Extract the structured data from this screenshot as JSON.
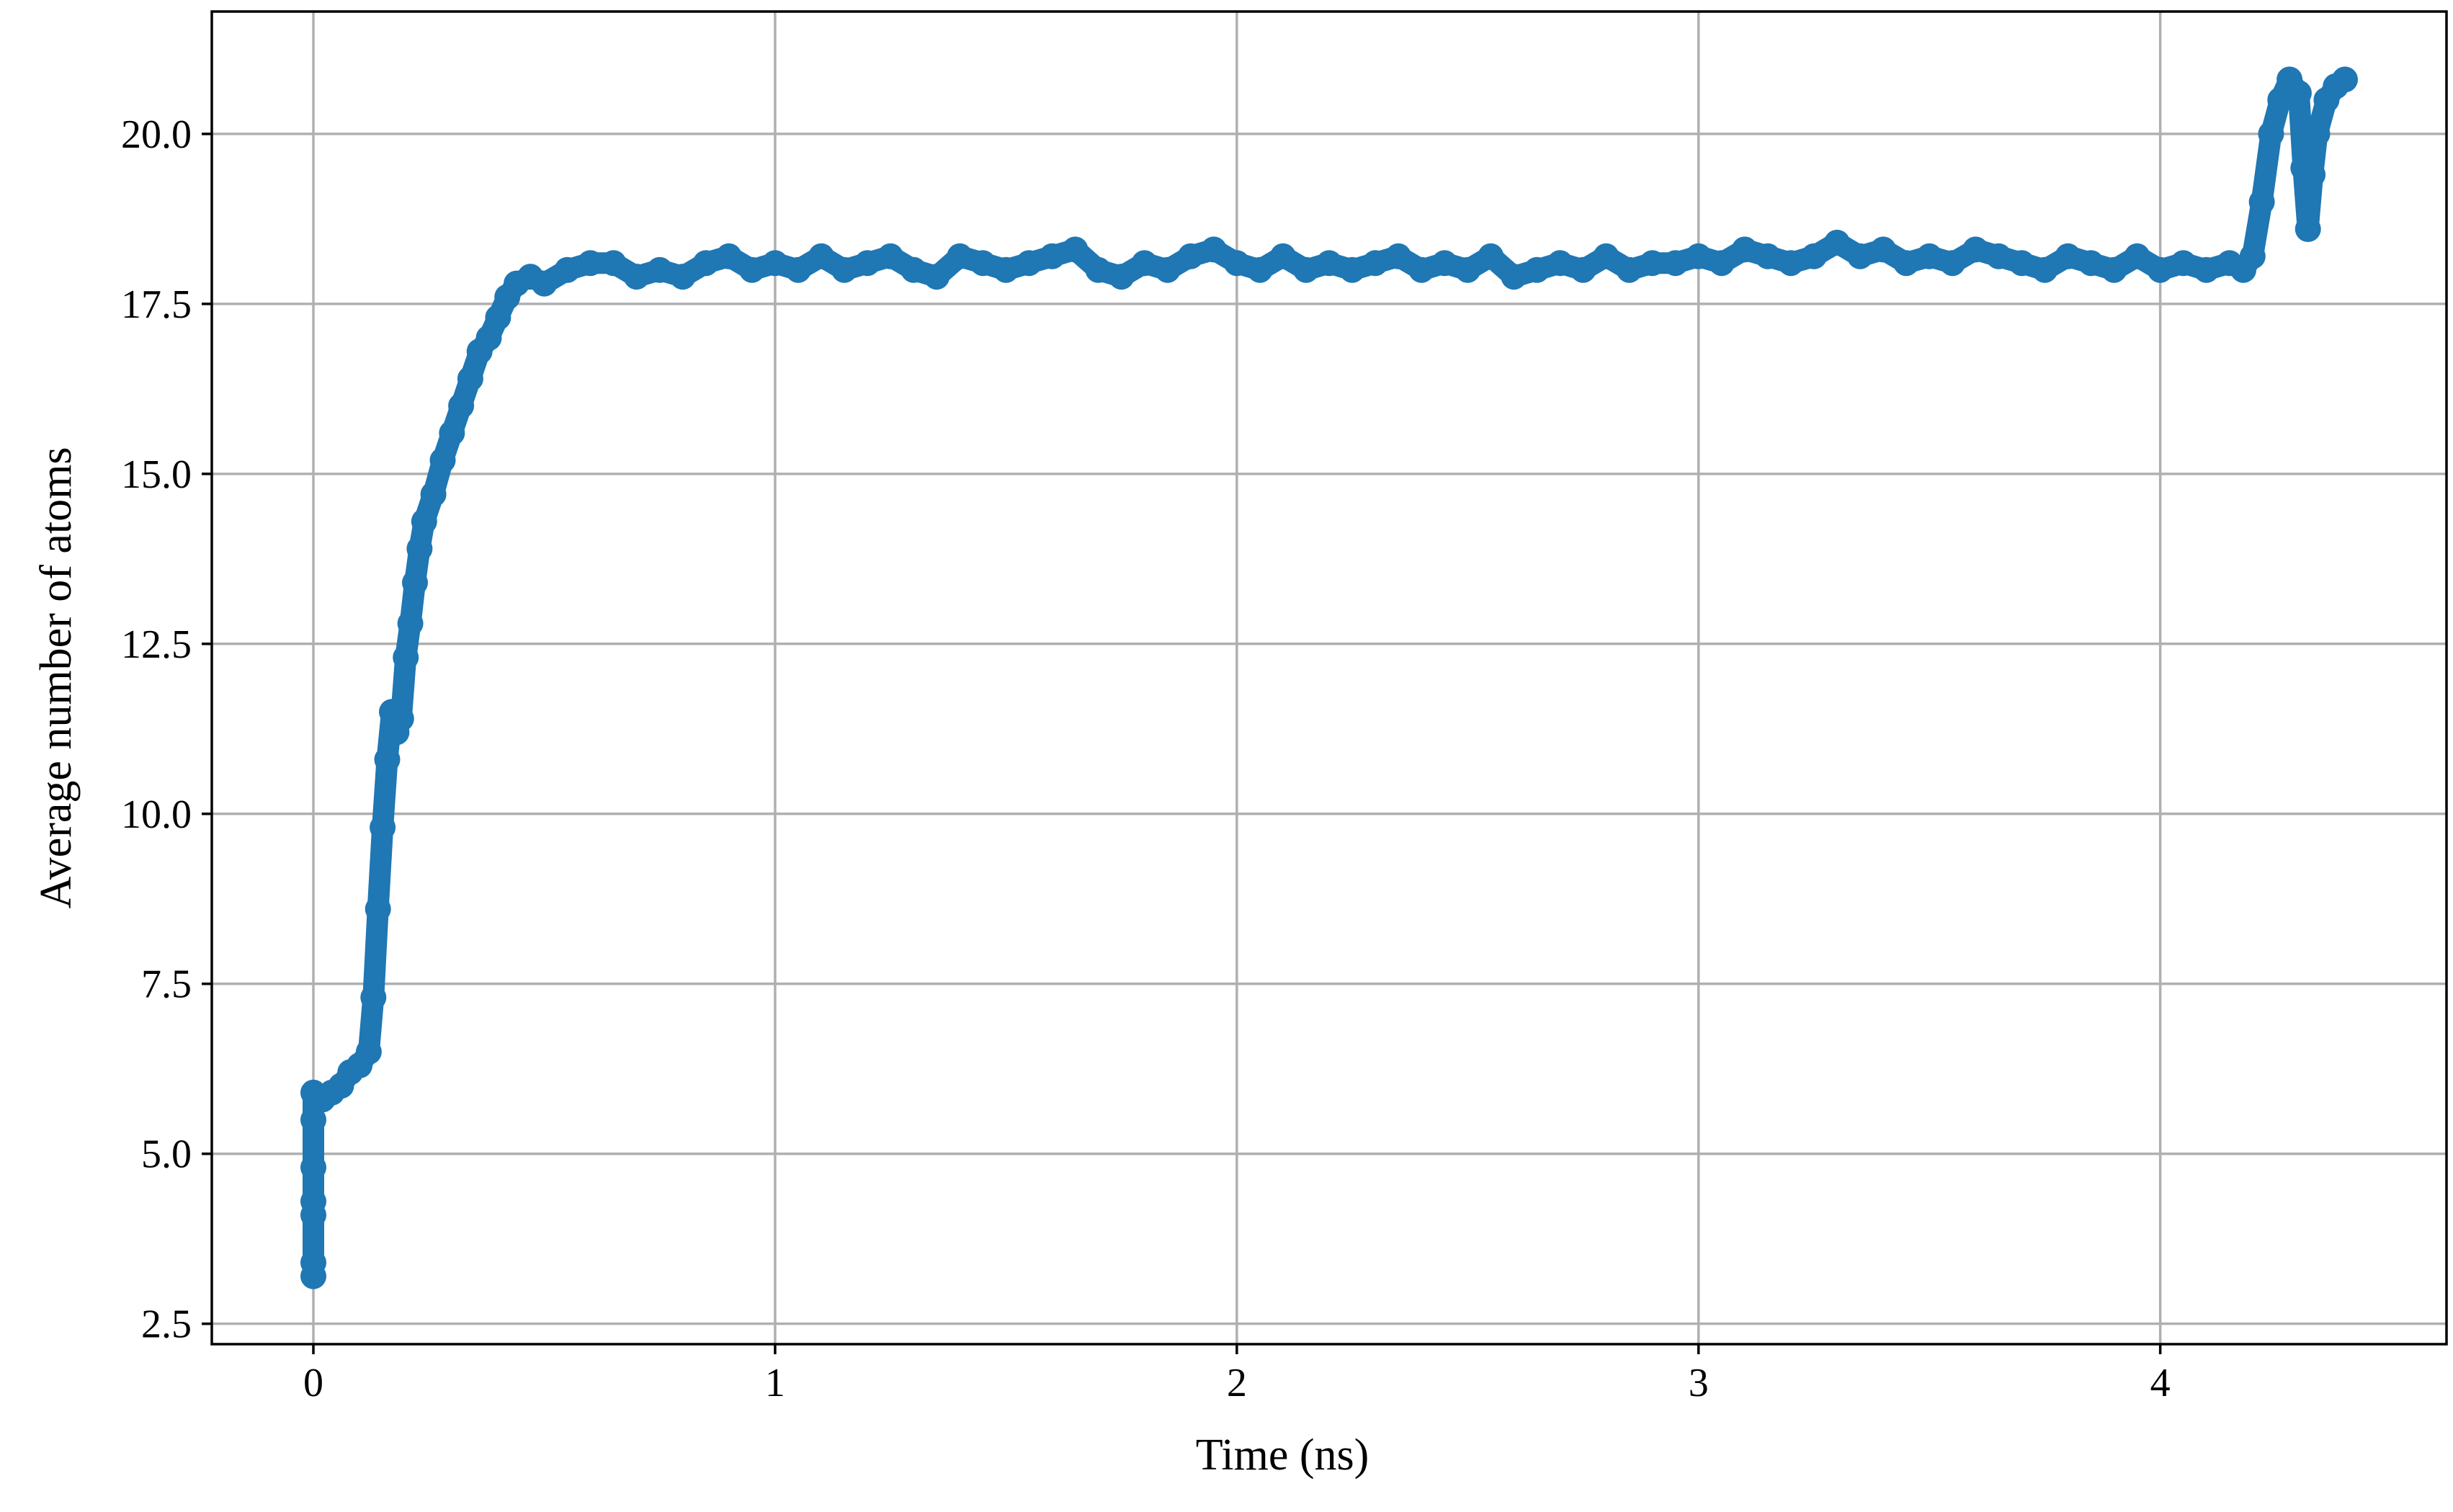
{
  "chart_data": {
    "type": "scatter",
    "title": "",
    "xlabel": "Time (ns)",
    "ylabel": "Average number of atoms",
    "xlim": [
      -0.22,
      4.62
    ],
    "ylim": [
      2.2,
      21.8
    ],
    "xticks": [
      0,
      1,
      2,
      3,
      4
    ],
    "xtick_labels": [
      "0",
      "1",
      "2",
      "3",
      "4"
    ],
    "yticks": [
      2.5,
      5.0,
      7.5,
      10.0,
      12.5,
      15.0,
      17.5,
      20.0
    ],
    "ytick_labels": [
      "2.5",
      "5.0",
      "7.5",
      "10.0",
      "12.5",
      "15.0",
      "17.5",
      "20.0"
    ],
    "grid": true,
    "legend": "none",
    "series_color": "#1f77b4",
    "marker": "circle",
    "line": "connected",
    "series": [
      {
        "x": [
          0.0,
          0.0,
          0.0,
          0.0,
          0.0,
          0.0,
          0.0,
          0.02,
          0.04,
          0.06,
          0.08,
          0.1,
          0.12,
          0.13,
          0.14,
          0.15,
          0.16,
          0.17,
          0.18,
          0.19,
          0.2,
          0.21,
          0.22,
          0.23,
          0.24,
          0.26,
          0.28,
          0.3,
          0.32,
          0.34,
          0.36,
          0.38,
          0.4,
          0.42,
          0.44,
          0.47,
          0.5,
          0.55,
          0.6,
          0.65,
          0.7,
          0.75,
          0.8,
          0.85,
          0.9,
          0.95,
          1.0,
          1.05,
          1.1,
          1.15,
          1.2,
          1.25,
          1.3,
          1.35,
          1.4,
          1.45,
          1.5,
          1.55,
          1.6,
          1.65,
          1.7,
          1.75,
          1.8,
          1.85,
          1.9,
          1.95,
          2.0,
          2.05,
          2.1,
          2.15,
          2.2,
          2.25,
          2.3,
          2.35,
          2.4,
          2.45,
          2.5,
          2.55,
          2.6,
          2.65,
          2.7,
          2.75,
          2.8,
          2.85,
          2.9,
          2.95,
          3.0,
          3.05,
          3.1,
          3.15,
          3.2,
          3.25,
          3.3,
          3.35,
          3.4,
          3.45,
          3.5,
          3.55,
          3.6,
          3.65,
          3.7,
          3.75,
          3.8,
          3.85,
          3.9,
          3.95,
          4.0,
          4.05,
          4.1,
          4.15,
          4.18,
          4.2,
          4.22,
          4.24,
          4.26,
          4.28,
          4.3,
          4.31,
          4.32,
          4.33,
          4.34,
          4.36,
          4.38,
          4.4
        ],
        "y": [
          3.2,
          3.4,
          4.1,
          4.3,
          4.8,
          5.5,
          5.9,
          5.8,
          5.9,
          6.0,
          6.2,
          6.3,
          6.5,
          7.3,
          8.6,
          9.8,
          10.8,
          11.5,
          11.2,
          11.4,
          12.3,
          12.8,
          13.4,
          13.9,
          14.3,
          14.7,
          15.2,
          15.6,
          16.0,
          16.4,
          16.8,
          17.0,
          17.3,
          17.6,
          17.8,
          17.9,
          17.8,
          18.0,
          18.1,
          18.1,
          17.9,
          18.0,
          17.9,
          18.1,
          18.2,
          18.0,
          18.1,
          18.0,
          18.2,
          18.0,
          18.1,
          18.2,
          18.0,
          17.9,
          18.2,
          18.1,
          18.0,
          18.1,
          18.2,
          18.3,
          18.0,
          17.9,
          18.1,
          18.0,
          18.2,
          18.3,
          18.1,
          18.0,
          18.2,
          18.0,
          18.1,
          18.0,
          18.1,
          18.2,
          18.0,
          18.1,
          18.0,
          18.2,
          17.9,
          18.0,
          18.1,
          18.0,
          18.2,
          18.0,
          18.1,
          18.1,
          18.2,
          18.1,
          18.3,
          18.2,
          18.1,
          18.2,
          18.4,
          18.2,
          18.3,
          18.1,
          18.2,
          18.1,
          18.3,
          18.2,
          18.1,
          18.0,
          18.2,
          18.1,
          18.0,
          18.2,
          18.0,
          18.1,
          18.0,
          18.1,
          18.0,
          18.2,
          19.0,
          20.0,
          20.5,
          20.8,
          20.6,
          19.5,
          18.6,
          19.4,
          20.0,
          20.5,
          20.7,
          20.8
        ]
      }
    ]
  }
}
